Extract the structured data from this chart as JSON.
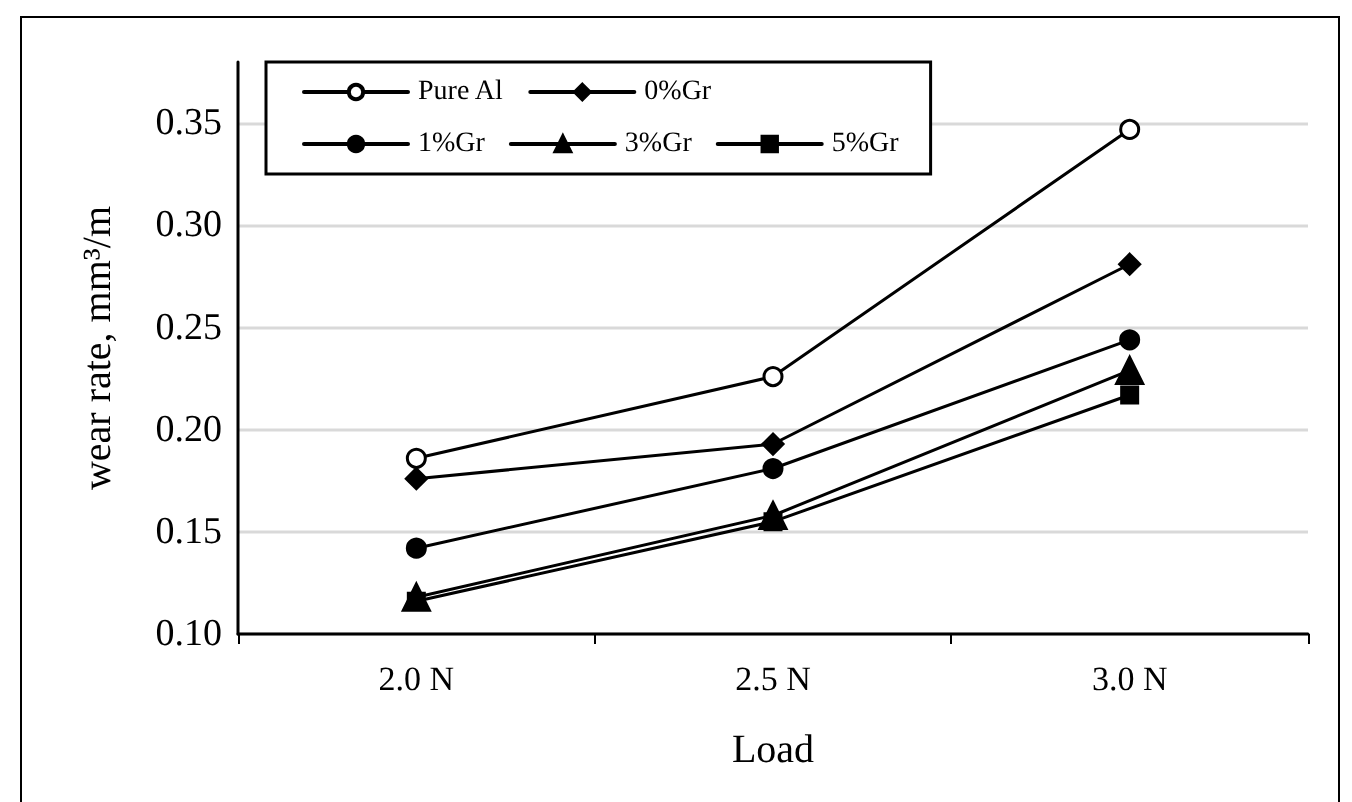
{
  "chart_data": {
    "type": "line",
    "xlabel": "Load",
    "ylabel": "wear rate, mm³/m",
    "categories": [
      "2.0 N",
      "2.5 N",
      "3.0 N"
    ],
    "series": [
      {
        "name": "Pure Al",
        "color": "#000000",
        "marker": "open circle",
        "values": [
          0.186,
          0.226,
          0.347
        ]
      },
      {
        "name": "0%Gr",
        "color": "#000000",
        "marker": "diamond",
        "values": [
          0.176,
          0.193,
          0.281
        ]
      },
      {
        "name": "1%Gr",
        "color": "#000000",
        "marker": "circle",
        "values": [
          0.142,
          0.181,
          0.244
        ]
      },
      {
        "name": "3%Gr",
        "color": "#000000",
        "marker": "triangle",
        "values": [
          0.118,
          0.158,
          0.229
        ]
      },
      {
        "name": "5%Gr",
        "color": "#000000",
        "marker": "square",
        "values": [
          0.116,
          0.155,
          0.217
        ]
      }
    ],
    "ylim": [
      0.1,
      0.38
    ],
    "yticks": [
      {
        "value": 0.1,
        "label": "0.10"
      },
      0.15,
      {
        "value": 0.2,
        "label": "0.20"
      },
      0.25,
      {
        "value": 0.3,
        "label": "0.30"
      },
      0.35
    ],
    "grid": "y",
    "legend": "top left",
    "line_style": "solid"
  }
}
